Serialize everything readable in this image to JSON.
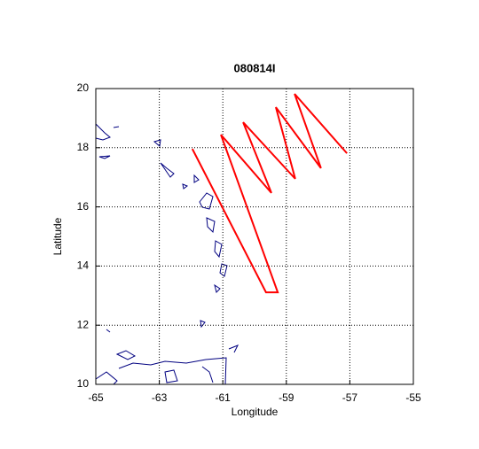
{
  "chart_data": {
    "type": "line",
    "title": "080814I",
    "xlabel": "Longitude",
    "ylabel": "Latitude",
    "xlim": [
      -65,
      -55
    ],
    "ylim": [
      10,
      20
    ],
    "xticks": [
      -65,
      -63,
      -61,
      -59,
      -57,
      -55
    ],
    "yticks": [
      10,
      12,
      14,
      16,
      18,
      20
    ],
    "grid": true,
    "series": [
      {
        "color": "#ff0000",
        "x": [
          -61.96,
          -59.64,
          -59.27,
          -61.06,
          -59.47,
          -60.36,
          -58.72,
          -59.33,
          -57.91,
          -58.74,
          -57.09
        ],
        "values": [
          17.96,
          13.11,
          13.11,
          18.44,
          16.47,
          18.86,
          16.95,
          19.37,
          17.31,
          19.82,
          17.81
        ]
      }
    ]
  }
}
